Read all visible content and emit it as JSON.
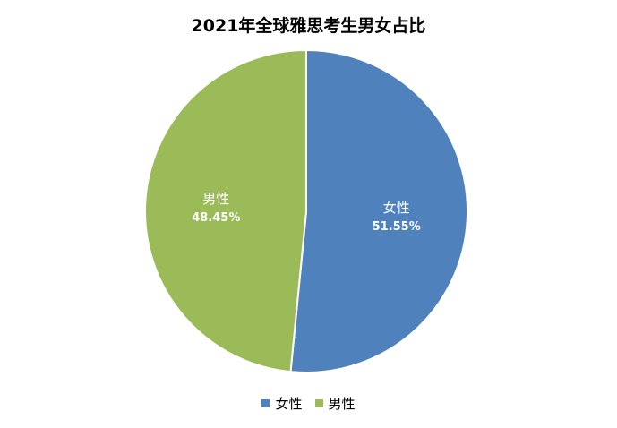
{
  "chart_data": {
    "type": "pie",
    "title": "2021年全球雅思考生男女占比",
    "slices": [
      {
        "name": "女性",
        "value": 51.55,
        "value_label": "51.55%",
        "color": "#4f81bd"
      },
      {
        "name": "男性",
        "value": 48.45,
        "value_label": "48.45%",
        "color": "#9bbb59"
      }
    ],
    "legend_position": "bottom"
  }
}
